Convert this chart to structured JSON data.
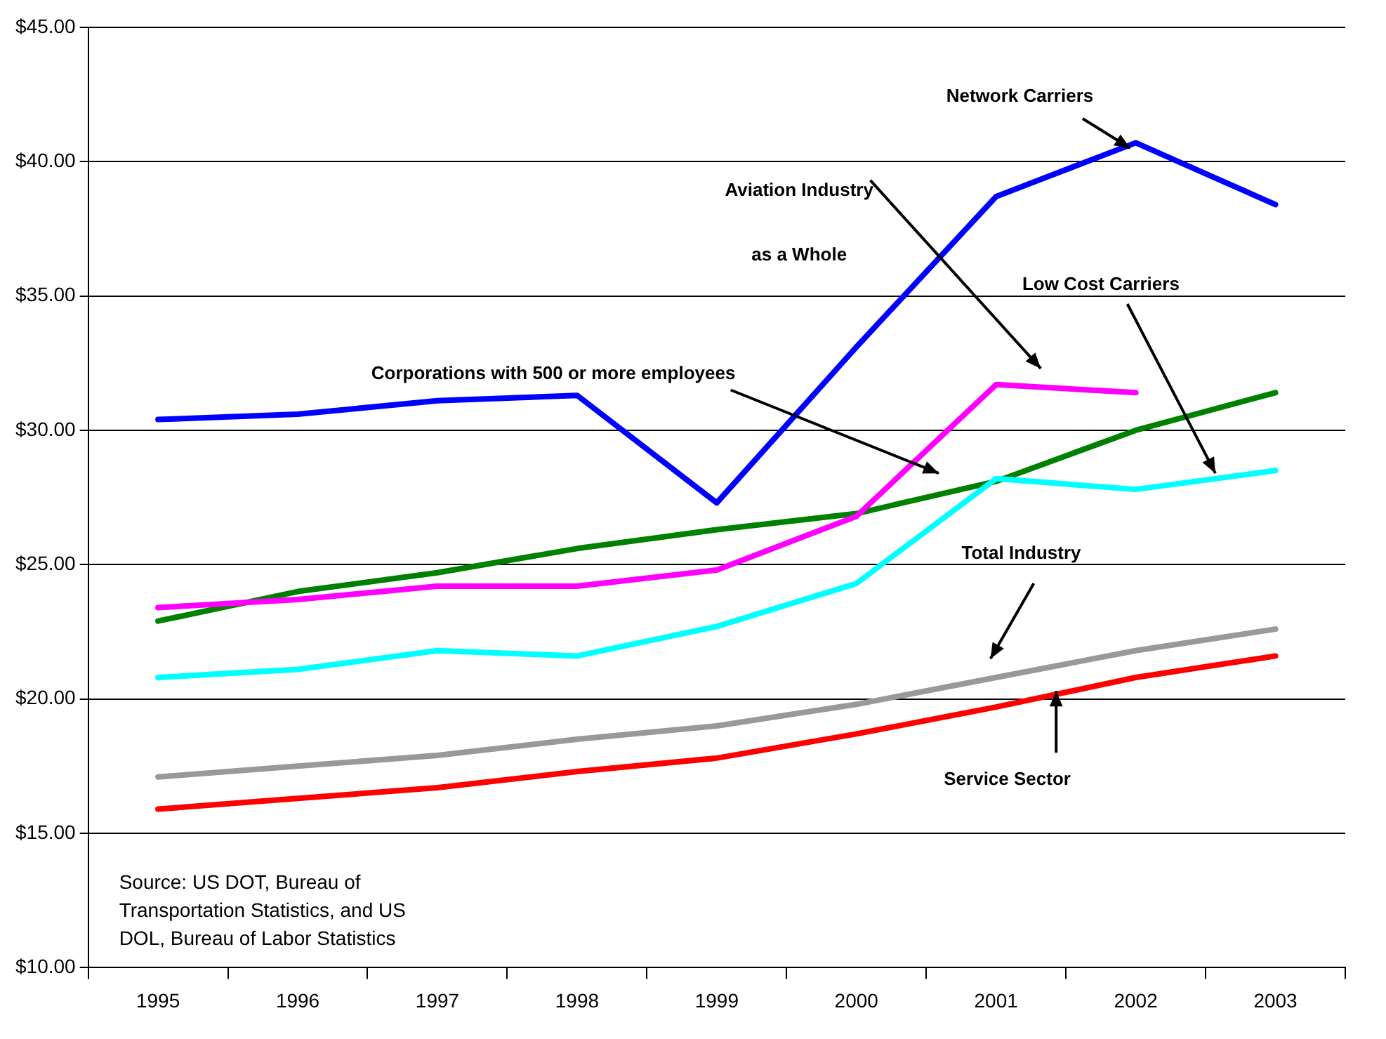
{
  "chart_data": {
    "type": "line",
    "categories": [
      "1995",
      "1996",
      "1997",
      "1998",
      "1999",
      "2000",
      "2001",
      "2002",
      "2003"
    ],
    "series": [
      {
        "name": "Network Carriers",
        "color": "#0000ff",
        "values": [
          30.4,
          30.6,
          31.1,
          31.3,
          27.3,
          33.1,
          38.7,
          40.7,
          38.4
        ]
      },
      {
        "name": "Aviation Industry as a Whole",
        "color": "#ff00ff",
        "values": [
          23.4,
          23.7,
          24.2,
          24.2,
          24.8,
          26.8,
          31.7,
          31.4,
          null
        ]
      },
      {
        "name": "Low Cost Carriers",
        "color": "#00ffff",
        "values": [
          20.8,
          21.1,
          21.8,
          21.6,
          22.7,
          24.3,
          28.2,
          27.8,
          28.5
        ]
      },
      {
        "name": "Corporations with 500 or more employees",
        "color": "#008000",
        "values": [
          22.9,
          24.0,
          24.7,
          25.6,
          26.3,
          26.9,
          28.1,
          30.0,
          31.4
        ]
      },
      {
        "name": "Total Industry",
        "color": "#999999",
        "values": [
          17.1,
          17.5,
          17.9,
          18.5,
          19.0,
          19.8,
          20.8,
          21.8,
          22.6
        ]
      },
      {
        "name": "Service Sector",
        "color": "#ff0000",
        "values": [
          15.9,
          16.3,
          16.7,
          17.3,
          17.8,
          18.7,
          19.7,
          20.8,
          21.6
        ]
      }
    ],
    "ylim": [
      10,
      45
    ],
    "yticks": [
      {
        "value": 10,
        "label": "$10.00"
      },
      {
        "value": 15,
        "label": "$15.00"
      },
      {
        "value": 20,
        "label": "$20.00"
      },
      {
        "value": 25,
        "label": "$25.00"
      },
      {
        "value": 30,
        "label": "$30.00"
      },
      {
        "value": 35,
        "label": "$35.00"
      },
      {
        "value": 40,
        "label": "$40.00"
      },
      {
        "value": 45,
        "label": "$45.00"
      }
    ],
    "grid": "y",
    "legend": false,
    "marker": "none",
    "line_style": "solid",
    "annotations": [
      "Source: US DOT, Bureau of Transportation Statistics, and US DOL, Bureau of Labor Statistics"
    ]
  }
}
